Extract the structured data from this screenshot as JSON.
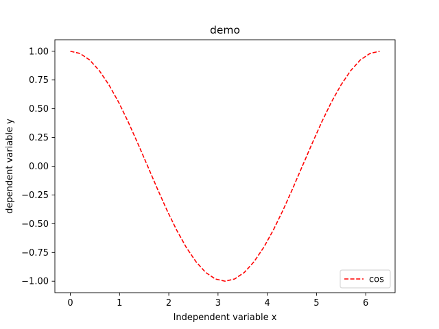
{
  "chart_data": {
    "type": "line",
    "title": "demo",
    "xlabel": "Independent variable x",
    "ylabel": "dependent variable y",
    "xlim": [
      -0.314,
      6.597
    ],
    "ylim": [
      -1.1,
      1.1
    ],
    "xticks": [
      0,
      1,
      2,
      3,
      4,
      5,
      6
    ],
    "xtick_labels": [
      "0",
      "1",
      "2",
      "3",
      "4",
      "5",
      "6"
    ],
    "yticks": [
      1.0,
      0.75,
      0.5,
      0.25,
      0.0,
      -0.25,
      -0.5,
      -0.75,
      -1.0
    ],
    "ytick_labels": [
      "1.00",
      "0.75",
      "0.50",
      "0.25",
      "0.00",
      "−0.25",
      "−0.50",
      "−0.75",
      "−1.00"
    ],
    "grid": false,
    "legend_position": "lower right",
    "series": [
      {
        "name": "cos",
        "color": "#ff0000",
        "linestyle": "dashed",
        "x": [
          0.0,
          0.196,
          0.393,
          0.589,
          0.785,
          0.982,
          1.178,
          1.374,
          1.571,
          1.767,
          1.963,
          2.16,
          2.356,
          2.553,
          2.749,
          2.945,
          3.142,
          3.338,
          3.534,
          3.731,
          3.927,
          4.123,
          4.32,
          4.516,
          4.712,
          4.909,
          5.105,
          5.301,
          5.498,
          5.694,
          5.89,
          6.087,
          6.283
        ],
        "y": [
          1.0,
          0.981,
          0.924,
          0.831,
          0.707,
          0.556,
          0.383,
          0.195,
          0.0,
          -0.195,
          -0.383,
          -0.556,
          -0.707,
          -0.831,
          -0.924,
          -0.981,
          -1.0,
          -0.981,
          -0.924,
          -0.831,
          -0.707,
          -0.556,
          -0.383,
          -0.195,
          0.0,
          0.195,
          0.383,
          0.556,
          0.707,
          0.831,
          0.924,
          0.981,
          1.0
        ]
      }
    ]
  }
}
